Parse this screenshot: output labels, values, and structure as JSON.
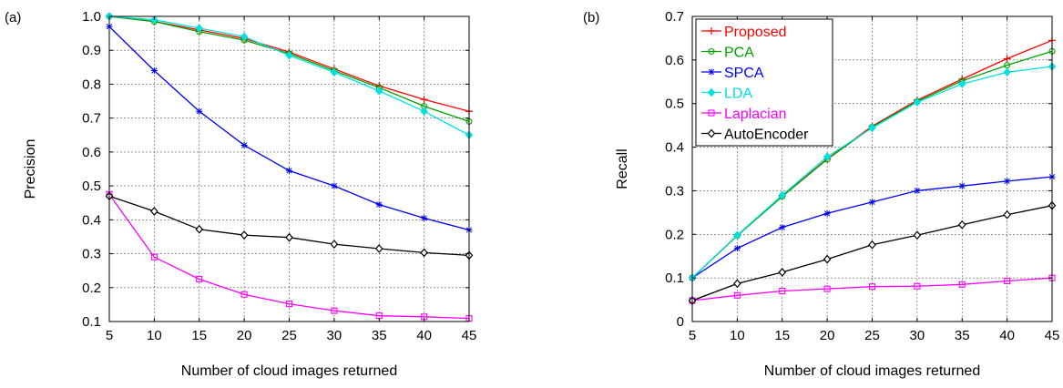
{
  "chart_data": [
    {
      "type": "line",
      "panel_label": "(a)",
      "xlabel": "Number of cloud images returned",
      "ylabel": "Precision",
      "x": [
        5,
        10,
        15,
        20,
        25,
        30,
        35,
        40,
        45
      ],
      "xlim": [
        5,
        45
      ],
      "ylim": [
        0.1,
        1.0
      ],
      "xticks": [
        "5",
        "10",
        "15",
        "20",
        "25",
        "30",
        "35",
        "40",
        "45"
      ],
      "yticks": [
        "0.1",
        "0.2",
        "0.3",
        "0.4",
        "0.5",
        "0.6",
        "0.7",
        "0.8",
        "0.9",
        "1.0"
      ],
      "ytick_values": [
        0.1,
        0.2,
        0.3,
        0.4,
        0.5,
        0.6,
        0.7,
        0.8,
        0.9,
        1.0
      ],
      "grid": true,
      "legend": "none",
      "series": [
        {
          "color": "#ff0000",
          "marker": "plus",
          "values": [
            1.0,
            0.985,
            0.96,
            0.935,
            0.895,
            0.845,
            0.795,
            0.755,
            0.72
          ]
        },
        {
          "color": "#00a000",
          "marker": "circle",
          "values": [
            1.0,
            0.985,
            0.955,
            0.93,
            0.89,
            0.84,
            0.79,
            0.735,
            0.69
          ]
        },
        {
          "color": "#0000ff",
          "marker": "star",
          "values": [
            0.97,
            0.84,
            0.72,
            0.62,
            0.545,
            0.5,
            0.445,
            0.405,
            0.37
          ]
        },
        {
          "color": "#00e0e0",
          "marker": "diamond-filled",
          "values": [
            1.0,
            0.99,
            0.965,
            0.94,
            0.885,
            0.835,
            0.78,
            0.72,
            0.65
          ]
        },
        {
          "color": "#ff00ff",
          "marker": "square",
          "values": [
            0.475,
            0.29,
            0.225,
            0.18,
            0.152,
            0.132,
            0.117,
            0.114,
            0.109
          ]
        },
        {
          "color": "#000000",
          "marker": "diamond",
          "values": [
            0.47,
            0.425,
            0.372,
            0.355,
            0.348,
            0.328,
            0.315,
            0.303,
            0.295
          ]
        }
      ]
    },
    {
      "type": "line",
      "panel_label": "(b)",
      "xlabel": "Number of cloud images returned",
      "ylabel": "Recall",
      "x": [
        5,
        10,
        15,
        20,
        25,
        30,
        35,
        40,
        45
      ],
      "xlim": [
        5,
        45
      ],
      "ylim": [
        0,
        0.7
      ],
      "xticks": [
        "5",
        "10",
        "15",
        "20",
        "25",
        "30",
        "35",
        "40",
        "45"
      ],
      "yticks": [
        "0",
        "0.1",
        "0.2",
        "0.3",
        "0.4",
        "0.5",
        "0.6",
        "0.7"
      ],
      "ytick_values": [
        0,
        0.1,
        0.2,
        0.3,
        0.4,
        0.5,
        0.6,
        0.7
      ],
      "grid": true,
      "legend": "top-left",
      "series": [
        {
          "name": "Proposed",
          "color": "#ff0000",
          "marker": "plus",
          "values": [
            0.1,
            0.197,
            0.288,
            0.373,
            0.448,
            0.508,
            0.556,
            0.603,
            0.645
          ]
        },
        {
          "name": "PCA",
          "color": "#00a000",
          "marker": "circle",
          "values": [
            0.1,
            0.197,
            0.287,
            0.372,
            0.446,
            0.505,
            0.552,
            0.588,
            0.62
          ]
        },
        {
          "name": "SPCA",
          "color": "#0000ff",
          "marker": "star",
          "values": [
            0.1,
            0.168,
            0.216,
            0.248,
            0.274,
            0.3,
            0.311,
            0.322,
            0.332
          ]
        },
        {
          "name": "LDA",
          "color": "#00e0e0",
          "marker": "diamond-filled",
          "values": [
            0.1,
            0.198,
            0.29,
            0.378,
            0.444,
            0.503,
            0.545,
            0.572,
            0.585
          ]
        },
        {
          "name": "Laplacian",
          "color": "#ff00ff",
          "marker": "square",
          "values": [
            0.048,
            0.06,
            0.07,
            0.075,
            0.08,
            0.081,
            0.085,
            0.093,
            0.1
          ]
        },
        {
          "name": "AutoEncoder",
          "color": "#000000",
          "marker": "diamond",
          "values": [
            0.048,
            0.087,
            0.113,
            0.143,
            0.176,
            0.198,
            0.222,
            0.245,
            0.266
          ]
        }
      ]
    }
  ]
}
